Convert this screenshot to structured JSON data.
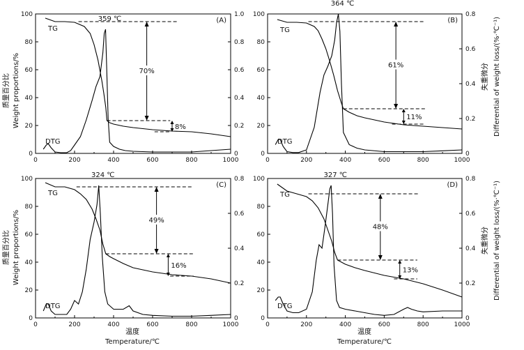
{
  "figure": {
    "ylabel_left_cn": "质量百分比",
    "ylabel_left_en": "Weight proportions/%",
    "ylabel_right_cn": "失重微分",
    "ylabel_right_en": "Differential of weight loss/(%·℃⁻¹)",
    "xlabel_cn": "温度",
    "xlabel_en": "Temperature/℃",
    "tg_label": "TG",
    "dtg_label": "DTG"
  },
  "chart_data": [
    {
      "type": "line",
      "panel": "(A)",
      "xlim": [
        0,
        1000
      ],
      "xticks": [
        0,
        200,
        400,
        600,
        800,
        1000
      ],
      "ylim_left": [
        0,
        100
      ],
      "yticks_left": [
        0,
        20,
        40,
        60,
        80,
        100
      ],
      "ylim_right": [
        0,
        1.0
      ],
      "yticks_right": [
        "0",
        "0.2",
        "0.4",
        "0.6",
        "0.8",
        "1.0"
      ],
      "peak_label": "359 ℃",
      "annotations": [
        "70%",
        "8%"
      ],
      "levels": {
        "top": 94.5,
        "mid": 23.5,
        "low": 15.5
      },
      "series": [
        {
          "name": "TG",
          "axis": "left",
          "x": [
            50,
            100,
            150,
            200,
            250,
            280,
            300,
            320,
            340,
            350,
            360,
            366,
            380,
            400,
            450,
            500,
            600,
            700,
            800,
            900,
            1000
          ],
          "y": [
            97,
            94.5,
            94.5,
            94,
            91,
            86,
            78,
            67,
            52,
            43,
            33,
            23.5,
            22,
            21,
            19.5,
            18.5,
            17,
            16,
            15.5,
            14,
            12
          ]
        },
        {
          "name": "DTG",
          "axis": "right",
          "x": [
            40,
            55,
            65,
            80,
            100,
            130,
            160,
            180,
            200,
            230,
            260,
            290,
            310,
            330,
            345,
            352,
            359,
            365,
            372,
            380,
            400,
            430,
            460,
            500,
            600,
            700,
            800,
            900,
            1000
          ],
          "y": [
            0.03,
            0.06,
            0.07,
            0.04,
            0.01,
            0.005,
            0.005,
            0.02,
            0.06,
            0.12,
            0.24,
            0.38,
            0.48,
            0.55,
            0.72,
            0.86,
            0.89,
            0.6,
            0.25,
            0.08,
            0.05,
            0.03,
            0.02,
            0.015,
            0.01,
            0.01,
            0.01,
            0.02,
            0.03
          ]
        }
      ]
    },
    {
      "type": "line",
      "panel": "(B)",
      "xlim": [
        0,
        1000
      ],
      "xticks": [
        0,
        200,
        400,
        600,
        800,
        1000
      ],
      "ylim_left": [
        0,
        100
      ],
      "yticks_left": [
        0,
        20,
        40,
        60,
        80,
        100
      ],
      "ylim_right": [
        0,
        0.8
      ],
      "yticks_right": [
        "0",
        "0.2",
        "0.4",
        "0.6",
        "0.8"
      ],
      "peak_label": "364 ℃",
      "annotations": [
        "61%",
        "11%"
      ],
      "levels": {
        "top": 94.5,
        "mid": 32,
        "low": 21
      },
      "series": [
        {
          "name": "TG",
          "axis": "left",
          "x": [
            50,
            100,
            150,
            200,
            240,
            260,
            280,
            300,
            320,
            340,
            360,
            380,
            390,
            420,
            460,
            500,
            600,
            700,
            800,
            900,
            1000
          ],
          "y": [
            96,
            94,
            94,
            93.5,
            91,
            88,
            82,
            75,
            66,
            56,
            45,
            36,
            32,
            29.5,
            27,
            25.5,
            22.5,
            20.5,
            19.5,
            18.5,
            17.5
          ]
        },
        {
          "name": "DTG",
          "axis": "right",
          "x": [
            40,
            55,
            65,
            80,
            100,
            130,
            160,
            200,
            240,
            270,
            290,
            310,
            330,
            345,
            355,
            364,
            372,
            380,
            390,
            420,
            460,
            500,
            600,
            700,
            800,
            900,
            1000
          ],
          "y": [
            0.05,
            0.08,
            0.08,
            0.04,
            0.01,
            0.005,
            0.005,
            0.02,
            0.15,
            0.35,
            0.45,
            0.5,
            0.56,
            0.65,
            0.75,
            0.8,
            0.7,
            0.4,
            0.12,
            0.05,
            0.03,
            0.02,
            0.01,
            0.01,
            0.01,
            0.015,
            0.02
          ]
        }
      ]
    },
    {
      "type": "line",
      "panel": "(C)",
      "xlim": [
        0,
        1000
      ],
      "xticks": [
        0,
        200,
        400,
        600,
        800,
        1000
      ],
      "ylim_left": [
        0,
        100
      ],
      "yticks_left": [
        0,
        20,
        40,
        60,
        80,
        100
      ],
      "ylim_right": [
        0,
        0.8
      ],
      "yticks_right": [
        "0",
        "0.2",
        "0.4",
        "0.6",
        "0.8"
      ],
      "peak_label": "324 ℃",
      "annotations": [
        "49%",
        "16%"
      ],
      "levels": {
        "top": 94,
        "mid": 46,
        "low": 30
      },
      "series": [
        {
          "name": "TG",
          "axis": "left",
          "x": [
            50,
            100,
            150,
            200,
            230,
            260,
            290,
            310,
            330,
            345,
            360,
            380,
            400,
            450,
            500,
            600,
            700,
            800,
            900,
            1000
          ],
          "y": [
            97,
            94,
            94,
            92,
            89,
            85,
            78,
            71,
            63,
            53,
            46,
            44,
            42.5,
            39,
            36,
            33,
            31,
            30,
            28,
            25
          ]
        },
        {
          "name": "DTG",
          "axis": "right",
          "x": [
            40,
            55,
            65,
            80,
            100,
            130,
            160,
            180,
            200,
            220,
            240,
            260,
            280,
            300,
            315,
            324,
            332,
            342,
            355,
            370,
            400,
            450,
            480,
            500,
            550,
            600,
            700,
            800,
            900,
            1000
          ],
          "y": [
            0.04,
            0.08,
            0.08,
            0.04,
            0.02,
            0.02,
            0.02,
            0.05,
            0.1,
            0.08,
            0.15,
            0.28,
            0.45,
            0.55,
            0.65,
            0.76,
            0.6,
            0.35,
            0.15,
            0.08,
            0.05,
            0.05,
            0.07,
            0.04,
            0.02,
            0.015,
            0.01,
            0.01,
            0.015,
            0.02
          ]
        }
      ]
    },
    {
      "type": "line",
      "panel": "(D)",
      "xlim": [
        0,
        1000
      ],
      "xticks": [
        0,
        200,
        400,
        600,
        800,
        1000
      ],
      "ylim_left": [
        0,
        100
      ],
      "yticks_left": [
        0,
        20,
        40,
        60,
        80,
        100
      ],
      "ylim_right": [
        0,
        0.8
      ],
      "yticks_right": [
        "0",
        "0.2",
        "0.4",
        "0.6",
        "0.8"
      ],
      "peak_label": "327 ℃",
      "annotations": [
        "48%",
        "13%"
      ],
      "levels": {
        "top": 89,
        "mid": 41.5,
        "low": 28
      },
      "series": [
        {
          "name": "TG",
          "axis": "left",
          "x": [
            50,
            100,
            150,
            200,
            230,
            260,
            290,
            310,
            330,
            345,
            360,
            380,
            400,
            450,
            500,
            600,
            700,
            800,
            900,
            1000
          ],
          "y": [
            96,
            91,
            89,
            87,
            84,
            79,
            71,
            63,
            55,
            47,
            41.5,
            40,
            38.5,
            36,
            34,
            30.5,
            28,
            24.5,
            20,
            15
          ]
        },
        {
          "name": "DTG",
          "axis": "right",
          "x": [
            40,
            55,
            65,
            80,
            100,
            130,
            160,
            200,
            230,
            250,
            265,
            280,
            295,
            310,
            320,
            327,
            334,
            342,
            355,
            370,
            400,
            450,
            500,
            550,
            600,
            650,
            700,
            720,
            740,
            770,
            800,
            900,
            1000
          ],
          "y": [
            0.1,
            0.12,
            0.12,
            0.08,
            0.04,
            0.03,
            0.03,
            0.05,
            0.15,
            0.33,
            0.42,
            0.4,
            0.52,
            0.65,
            0.74,
            0.76,
            0.6,
            0.3,
            0.1,
            0.06,
            0.05,
            0.04,
            0.03,
            0.02,
            0.015,
            0.02,
            0.05,
            0.06,
            0.05,
            0.04,
            0.035,
            0.04,
            0.04
          ]
        }
      ]
    }
  ]
}
